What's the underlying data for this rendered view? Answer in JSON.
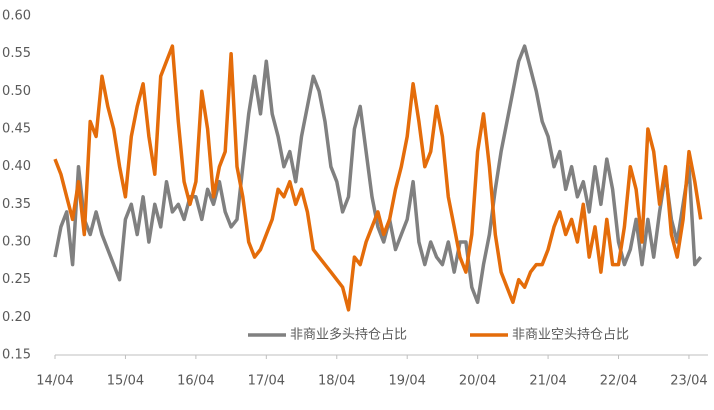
{
  "chart_data": {
    "type": "line",
    "categories": [
      "14/04",
      null,
      null,
      null,
      null,
      null,
      null,
      null,
      null,
      null,
      null,
      null,
      "15/04",
      null,
      null,
      null,
      null,
      null,
      null,
      null,
      null,
      null,
      null,
      null,
      "16/04",
      null,
      null,
      null,
      null,
      null,
      null,
      null,
      null,
      null,
      null,
      null,
      "17/04",
      null,
      null,
      null,
      null,
      null,
      null,
      null,
      null,
      null,
      null,
      null,
      "18/04",
      null,
      null,
      null,
      null,
      null,
      null,
      null,
      null,
      null,
      null,
      null,
      "19/04",
      null,
      null,
      null,
      null,
      null,
      null,
      null,
      null,
      null,
      null,
      null,
      "20/04",
      null,
      null,
      null,
      null,
      null,
      null,
      null,
      null,
      null,
      null,
      null,
      "21/04",
      null,
      null,
      null,
      null,
      null,
      null,
      null,
      null,
      null,
      null,
      null,
      "22/04",
      null,
      null,
      null,
      null,
      null,
      null,
      null,
      null,
      null,
      null,
      null,
      "23/04",
      null,
      null
    ],
    "series": [
      {
        "name": "非商业多头持仓占比",
        "color": "#808080",
        "values": [
          0.28,
          0.32,
          0.34,
          0.27,
          0.4,
          0.33,
          0.31,
          0.34,
          0.31,
          0.29,
          0.27,
          0.25,
          0.33,
          0.35,
          0.31,
          0.36,
          0.3,
          0.35,
          0.32,
          0.38,
          0.34,
          0.35,
          0.33,
          0.36,
          0.36,
          0.33,
          0.37,
          0.35,
          0.38,
          0.34,
          0.32,
          0.33,
          0.4,
          0.47,
          0.52,
          0.47,
          0.54,
          0.47,
          0.44,
          0.4,
          0.42,
          0.38,
          0.44,
          0.48,
          0.52,
          0.5,
          0.46,
          0.4,
          0.38,
          0.34,
          0.36,
          0.45,
          0.48,
          0.42,
          0.36,
          0.32,
          0.3,
          0.33,
          0.29,
          0.31,
          0.33,
          0.38,
          0.3,
          0.27,
          0.3,
          0.28,
          0.27,
          0.3,
          0.26,
          0.3,
          0.3,
          0.24,
          0.22,
          0.27,
          0.31,
          0.37,
          0.42,
          0.46,
          0.5,
          0.54,
          0.56,
          0.53,
          0.5,
          0.46,
          0.44,
          0.4,
          0.42,
          0.37,
          0.4,
          0.36,
          0.38,
          0.34,
          0.4,
          0.35,
          0.41,
          0.37,
          0.3,
          0.27,
          0.29,
          0.33,
          0.27,
          0.33,
          0.28,
          0.34,
          0.39,
          0.33,
          0.3,
          0.35,
          0.4,
          0.27,
          0.28
        ]
      },
      {
        "name": "非商业空头持仓占比",
        "color": "#e46c0a",
        "values": [
          0.41,
          0.39,
          0.36,
          0.33,
          0.38,
          0.31,
          0.46,
          0.44,
          0.52,
          0.48,
          0.45,
          0.4,
          0.36,
          0.44,
          0.48,
          0.51,
          0.44,
          0.39,
          0.52,
          0.54,
          0.56,
          0.46,
          0.38,
          0.35,
          0.38,
          0.5,
          0.45,
          0.36,
          0.4,
          0.42,
          0.55,
          0.4,
          0.36,
          0.3,
          0.28,
          0.29,
          0.31,
          0.33,
          0.37,
          0.36,
          0.38,
          0.35,
          0.37,
          0.34,
          0.29,
          0.28,
          0.27,
          0.26,
          0.25,
          0.24,
          0.21,
          0.28,
          0.27,
          0.3,
          0.32,
          0.34,
          0.31,
          0.33,
          0.37,
          0.4,
          0.44,
          0.51,
          0.46,
          0.4,
          0.42,
          0.48,
          0.44,
          0.36,
          0.32,
          0.28,
          0.26,
          0.31,
          0.42,
          0.47,
          0.4,
          0.31,
          0.26,
          0.24,
          0.22,
          0.25,
          0.24,
          0.26,
          0.27,
          0.27,
          0.29,
          0.32,
          0.34,
          0.31,
          0.33,
          0.3,
          0.35,
          0.28,
          0.32,
          0.26,
          0.33,
          0.27,
          0.27,
          0.32,
          0.4,
          0.37,
          0.3,
          0.45,
          0.42,
          0.35,
          0.4,
          0.31,
          0.28,
          0.33,
          0.42,
          0.38,
          0.33
        ]
      }
    ],
    "ylim": [
      0.15,
      0.6
    ],
    "yticks": [
      0.15,
      {
        "value": 0.2,
        "label": "0.20"
      },
      0.25,
      {
        "value": 0.3,
        "label": "0.30"
      },
      0.35,
      {
        "value": 0.4,
        "label": "0.40"
      },
      0.45,
      {
        "value": 0.5,
        "label": "0.50"
      },
      0.55,
      {
        "value": 0.6,
        "label": "0.60"
      }
    ],
    "grid": false,
    "legend": "bottom"
  }
}
